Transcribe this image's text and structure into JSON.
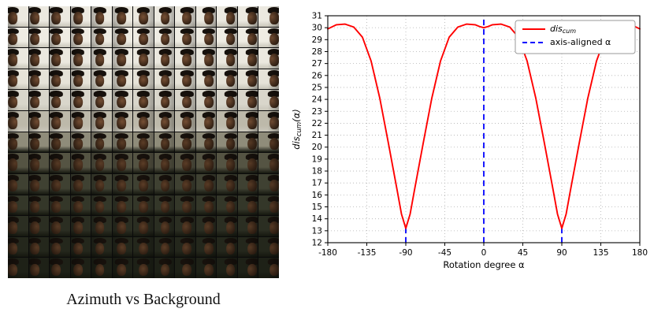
{
  "figure": {
    "caption": "Azimuth vs Background"
  },
  "image_grid": {
    "rows": 13,
    "cols": 13,
    "content": "face portrait with dark hat, azimuth varies left-to-right, background varies top-to-bottom",
    "row_backgrounds": [
      "#ece9e0",
      "#efece3",
      "#ebe8df",
      "#e6e3d8",
      "#d9d6cb",
      "#bdb9aa",
      "#8f8c7a",
      "#55544395",
      "#3f4132",
      "#343729",
      "#2b2e22",
      "#24271c",
      "#1e2117"
    ],
    "row_backgrounds_fallback": [
      "#ece9e0",
      "#efece3",
      "#ebe8df",
      "#e6e3d8",
      "#d9d6cb",
      "#bdb9aa",
      "#8f8c7a",
      "#555443",
      "#3f4132",
      "#343729",
      "#2b2e22",
      "#24271c",
      "#1e2117"
    ],
    "hat_color": "#17110c",
    "face_color": "#7a5236",
    "face_color_dark_rows": "#5e3f28"
  },
  "chart_data": {
    "type": "line",
    "title": "",
    "xlabel": "Rotation degree α",
    "ylabel": "dis_cum(α)",
    "ylabel_parts": {
      "pre": "dis",
      "sub": "cum",
      "post": "(α)"
    },
    "xlim": [
      -180,
      180
    ],
    "ylim": [
      12,
      31
    ],
    "x_ticks": [
      -180,
      -135,
      -90,
      -45,
      0,
      45,
      90,
      135,
      180
    ],
    "y_ticks": [
      12,
      13,
      14,
      15,
      16,
      17,
      18,
      19,
      20,
      21,
      22,
      23,
      24,
      25,
      26,
      27,
      28,
      29,
      30,
      31
    ],
    "grid": true,
    "grid_color": "#b0b0b0",
    "legend": {
      "position": "upper right",
      "entries": [
        {
          "label": "dis_cum",
          "parts": {
            "pre": "dis",
            "sub": "cum",
            "post": ""
          },
          "color": "#ff0000",
          "dash": false,
          "italic": true
        },
        {
          "label": "axis-aligned α",
          "color": "#0000ff",
          "dash": true,
          "italic": false
        }
      ]
    },
    "series": [
      {
        "name": "dis_cum",
        "color": "#ff0000",
        "x": [
          -180,
          -170,
          -160,
          -150,
          -140,
          -130,
          -120,
          -110,
          -100,
          -95,
          -90,
          -85,
          -80,
          -70,
          -60,
          -50,
          -40,
          -30,
          -20,
          -10,
          -5,
          0,
          5,
          10,
          20,
          30,
          40,
          50,
          60,
          70,
          80,
          85,
          90,
          95,
          100,
          110,
          120,
          130,
          140,
          150,
          160,
          170,
          180
        ],
        "y": [
          29.9,
          30.25,
          30.3,
          30.05,
          29.2,
          27.2,
          24.1,
          20.3,
          16.4,
          14.4,
          13.2,
          14.4,
          16.4,
          20.3,
          24.1,
          27.2,
          29.2,
          30.05,
          30.3,
          30.25,
          30.1,
          30.0,
          30.1,
          30.25,
          30.3,
          30.05,
          29.2,
          27.2,
          24.1,
          20.3,
          16.4,
          14.4,
          13.2,
          14.4,
          16.4,
          20.3,
          24.1,
          27.2,
          29.2,
          30.05,
          30.3,
          30.25,
          29.9
        ]
      }
    ],
    "vlines": [
      {
        "x": 0,
        "y_from": 12,
        "y_to": 31,
        "color": "#0000ff",
        "dash": true
      },
      {
        "x": -90,
        "y_from": 12,
        "y_to": 13.45,
        "color": "#0000ff",
        "dash": true
      },
      {
        "x": 90,
        "y_from": 12,
        "y_to": 13.45,
        "color": "#0000ff",
        "dash": true
      }
    ]
  }
}
